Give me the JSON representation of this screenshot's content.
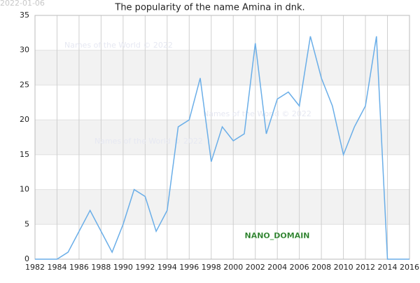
{
  "chart_data": {
    "type": "line",
    "title": "The popularity of the name Amina in dnk.",
    "date_stamp": "2022-01-06",
    "watermarks": [
      "Names of the World © 2022",
      "Names of the World © 2022",
      "Names of the World © 2022"
    ],
    "badge": "NANO_DOMAIN",
    "x": [
      1982,
      1983,
      1984,
      1985,
      1986,
      1987,
      1988,
      1989,
      1990,
      1991,
      1992,
      1993,
      1994,
      1995,
      1996,
      1997,
      1998,
      1999,
      2000,
      2001,
      2002,
      2003,
      2004,
      2005,
      2006,
      2007,
      2008,
      2009,
      2010,
      2011,
      2012,
      2013,
      2014,
      2015,
      2016
    ],
    "series": [
      {
        "name": "Amina",
        "color": "#6aaee8",
        "values": [
          0,
          0,
          0,
          1,
          4,
          7,
          4,
          1,
          5,
          10,
          9,
          4,
          7,
          19,
          20,
          26,
          14,
          19,
          17,
          18,
          31,
          18,
          23,
          24,
          22,
          32,
          26,
          22,
          15,
          19,
          22,
          32,
          0,
          0,
          0
        ]
      }
    ],
    "xlim": [
      1982,
      2016
    ],
    "xticks": [
      1982,
      1984,
      1986,
      1988,
      1990,
      1992,
      1994,
      1996,
      1998,
      2000,
      2002,
      2004,
      2006,
      2008,
      2010,
      2012,
      2014,
      2016
    ],
    "ylim": [
      0,
      35
    ],
    "yticks": [
      0,
      5,
      10,
      15,
      20,
      25,
      30,
      35
    ],
    "grid": true
  }
}
